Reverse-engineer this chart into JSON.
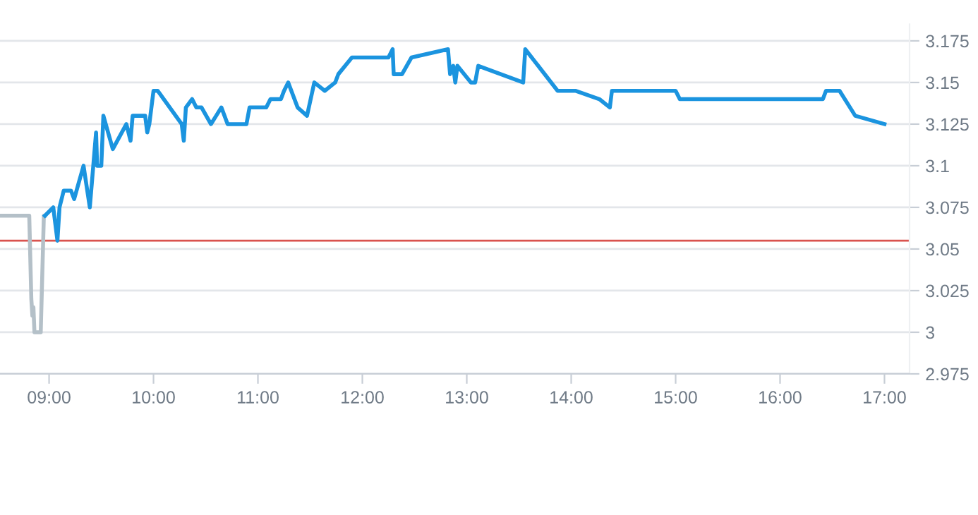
{
  "chart_data": {
    "type": "line",
    "series": [
      {
        "color": "#b4c0c8",
        "x": [
          8.53,
          8.81,
          8.83,
          8.84,
          8.85,
          8.86,
          8.92,
          8.95,
          8.96
        ],
        "values": [
          3.07,
          3.07,
          3.02,
          3.01,
          3.015,
          3.0,
          3.0,
          3.07,
          3.07
        ]
      },
      {
        "color": "#1b94df",
        "x": [
          8.96,
          9.04,
          9.08,
          9.1,
          9.14,
          9.21,
          9.24,
          9.33,
          9.39,
          9.45,
          9.46,
          9.5,
          9.52,
          9.61,
          9.74,
          9.78,
          9.8,
          9.92,
          9.94,
          9.96,
          10.0,
          10.04,
          10.27,
          10.29,
          10.31,
          10.37,
          10.41,
          10.46,
          10.55,
          10.6,
          10.65,
          10.71,
          10.89,
          10.92,
          11.08,
          11.12,
          11.22,
          11.25,
          11.29,
          11.38,
          11.47,
          11.54,
          11.64,
          11.74,
          11.77,
          11.9,
          12.25,
          12.29,
          12.3,
          12.38,
          12.47,
          12.82,
          12.84,
          12.87,
          12.89,
          12.91,
          13.04,
          13.08,
          13.11,
          13.54,
          13.56,
          13.87,
          14.04,
          14.27,
          14.37,
          14.39,
          15.0,
          15.04,
          16.41,
          16.44,
          16.57,
          16.72,
          17.0
        ],
        "values": [
          3.07,
          3.075,
          3.055,
          3.075,
          3.085,
          3.085,
          3.08,
          3.1,
          3.075,
          3.12,
          3.1,
          3.1,
          3.13,
          3.11,
          3.125,
          3.115,
          3.13,
          3.13,
          3.12,
          3.125,
          3.145,
          3.145,
          3.125,
          3.115,
          3.135,
          3.14,
          3.135,
          3.135,
          3.125,
          3.13,
          3.135,
          3.125,
          3.125,
          3.135,
          3.135,
          3.14,
          3.14,
          3.145,
          3.15,
          3.135,
          3.13,
          3.15,
          3.145,
          3.15,
          3.155,
          3.165,
          3.165,
          3.17,
          3.155,
          3.155,
          3.165,
          3.17,
          3.155,
          3.16,
          3.15,
          3.16,
          3.15,
          3.15,
          3.16,
          3.15,
          3.17,
          3.145,
          3.145,
          3.14,
          3.135,
          3.145,
          3.145,
          3.14,
          3.14,
          3.145,
          3.145,
          3.13,
          3.125
        ]
      }
    ],
    "xlim": [
      8.53,
      17.24
    ],
    "xticks": [
      {
        "value": 9,
        "label": "09:00"
      },
      {
        "value": 10,
        "label": "10:00"
      },
      {
        "value": 11,
        "label": "11:00"
      },
      {
        "value": 12,
        "label": "12:00"
      },
      {
        "value": 13,
        "label": "13:00"
      },
      {
        "value": 14,
        "label": "14:00"
      },
      {
        "value": 15,
        "label": "15:00"
      },
      {
        "value": 16,
        "label": "16:00"
      },
      {
        "value": 17,
        "label": "17:00"
      }
    ],
    "ylim": [
      2.975,
      3.185
    ],
    "yticks": [
      2.975,
      3,
      3.025,
      3.05,
      3.075,
      3.1,
      3.125,
      3.15,
      3.175
    ],
    "ref_lines": [
      {
        "axis": "y",
        "value": 3.055,
        "color": "#d9534f"
      }
    ],
    "grid": "y",
    "legend": false,
    "marker": "none",
    "line_style": "solid"
  }
}
